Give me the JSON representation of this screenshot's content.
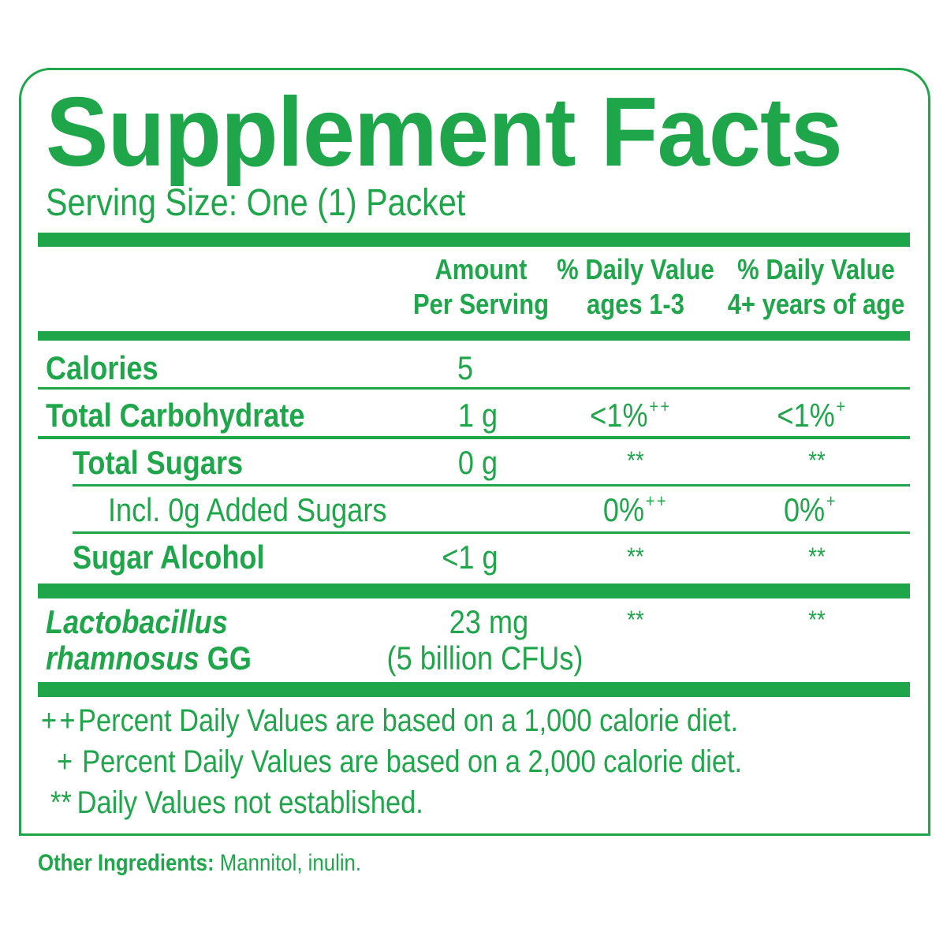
{
  "title": "Supplement Facts",
  "serving_size": "Serving Size: One (1) Packet",
  "headers": {
    "amount": [
      "Amount",
      "Per Serving"
    ],
    "dv_young": [
      "% Daily Value",
      "ages 1-3"
    ],
    "dv_older": [
      "% Daily Value",
      "4+ years of age"
    ]
  },
  "rows": [
    {
      "name": "Calories",
      "amount": "5",
      "dv1": "",
      "dv1_mark": "",
      "dv2": "",
      "dv2_mark": ""
    },
    {
      "name": "Total Carbohydrate",
      "amount": "1 g",
      "dv1": "<1%",
      "dv1_mark": "++",
      "dv2": "<1%",
      "dv2_mark": "+"
    },
    {
      "name": "Total Sugars",
      "amount": "0 g",
      "dv1": "**",
      "dv1_mark": "",
      "dv2": "**",
      "dv2_mark": ""
    },
    {
      "name": "Incl. 0g Added Sugars",
      "amount": "",
      "dv1": "0%",
      "dv1_mark": "++",
      "dv2": "0%",
      "dv2_mark": "+"
    },
    {
      "name": "Sugar Alcohol",
      "amount": "<1 g",
      "dv1": "**",
      "dv1_mark": "",
      "dv2": "**",
      "dv2_mark": ""
    }
  ],
  "probiotic": {
    "name_line1": "Lactobacillus",
    "name_line2_italic": "rhamnosus",
    "name_line2_strain": "GG",
    "amount": "23 mg",
    "amount_note": "(5 billion CFUs)",
    "dv1": "**",
    "dv2": "**"
  },
  "footnotes": [
    {
      "mark": "++",
      "text": "Percent Daily Values are based on a 1,000 calorie diet."
    },
    {
      "mark": "+",
      "text": "Percent Daily Values are based on a 2,000 calorie diet."
    },
    {
      "mark": "**",
      "text": "Daily Values not established."
    }
  ],
  "other_ingredients": {
    "label": "Other Ingredients:",
    "text": "Mannitol, inulin."
  },
  "colors": {
    "brand_green": "#1fa64a"
  }
}
